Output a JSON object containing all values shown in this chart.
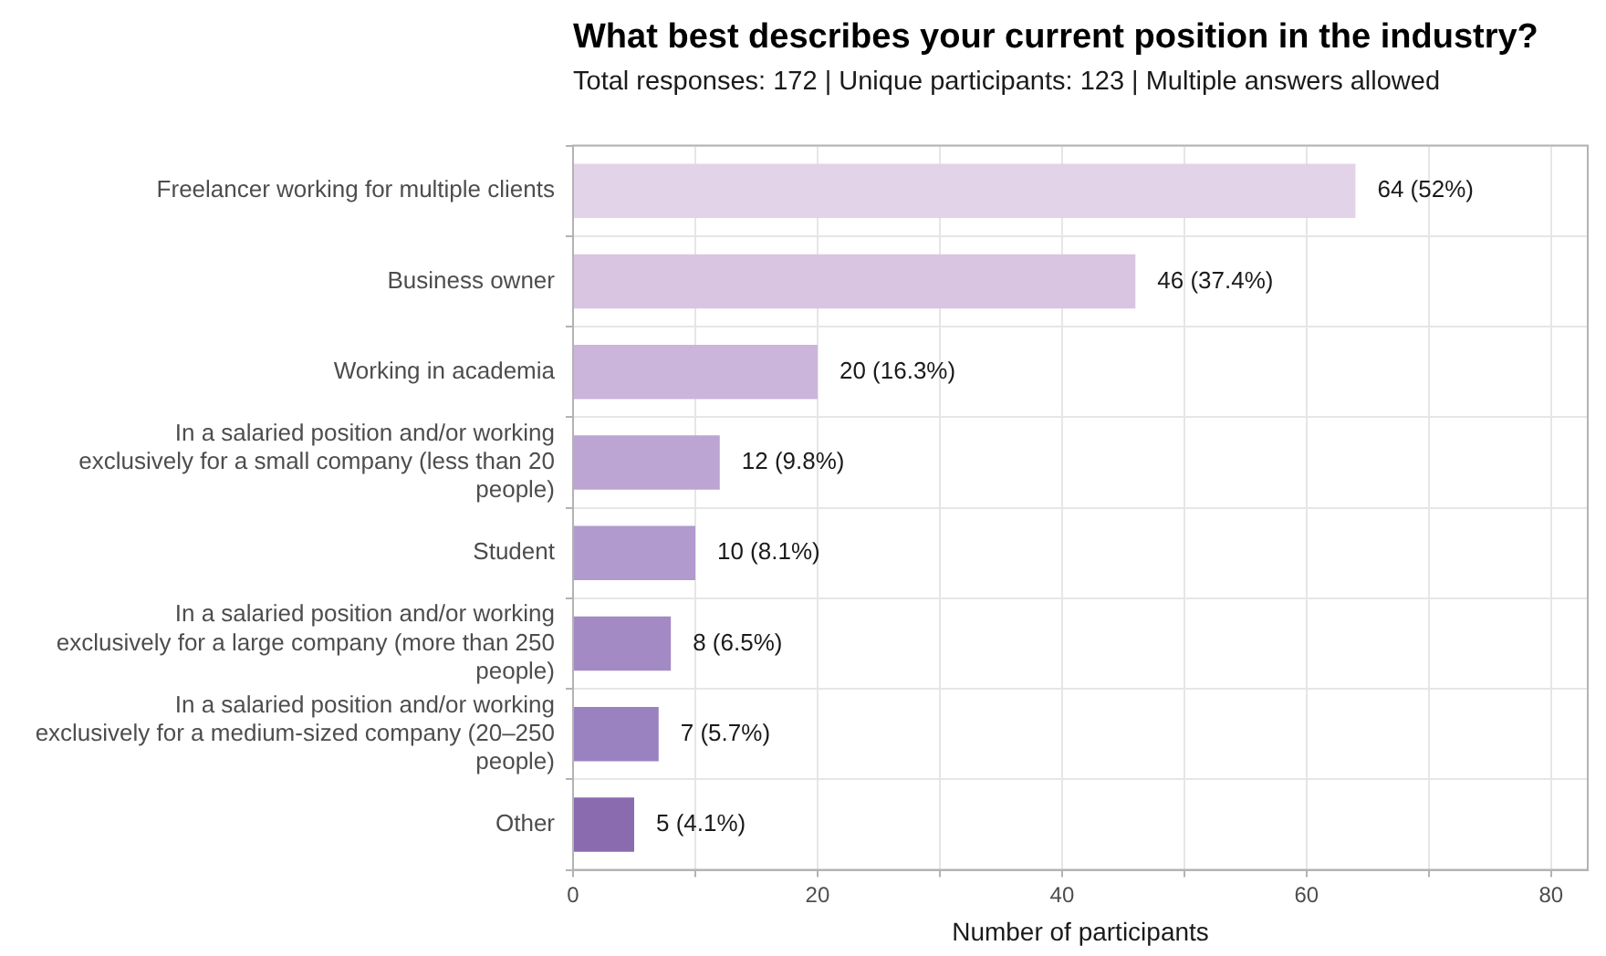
{
  "chart_data": {
    "type": "bar",
    "orientation": "horizontal",
    "title": "What best describes your current position in the industry?",
    "subtitle": "Total responses: 172 | Unique participants: 123 | Multiple answers allowed",
    "xlabel": "Number of participants",
    "categories": [
      "Freelancer working for multiple clients",
      "Business owner",
      "Working in academia",
      "In a salaried position and/or working exclusively for a small company (less than 20 people)",
      "Student",
      "In a salaried position and/or working exclusively for a large company (more than 250 people)",
      "In a salaried position and/or working exclusively for a medium-sized company (20–250 people)",
      "Other"
    ],
    "values": [
      64,
      46,
      20,
      12,
      10,
      8,
      7,
      5
    ],
    "colors": [
      "#e3d3e8",
      "#d9c5e2",
      "#cbb5db",
      "#bda5d3",
      "#b09ace",
      "#a38ac4",
      "#9a81bf",
      "#8a6bb0"
    ],
    "value_labels": [
      "64 (52%)",
      "46 (37.4%)",
      "20 (16.3%)",
      "12 (9.8%)",
      "10 (8.1%)",
      "8 (6.5%)",
      "7 (5.7%)",
      "5 (4.1%)"
    ],
    "xlim": [
      0,
      83
    ],
    "xticks": [
      0,
      {
        "value": 10,
        "label": null
      },
      20,
      {
        "value": 30,
        "label": null
      },
      40,
      {
        "value": 50,
        "label": null
      },
      60,
      {
        "value": 70,
        "label": null
      },
      80
    ],
    "grid": true,
    "legend": false
  }
}
